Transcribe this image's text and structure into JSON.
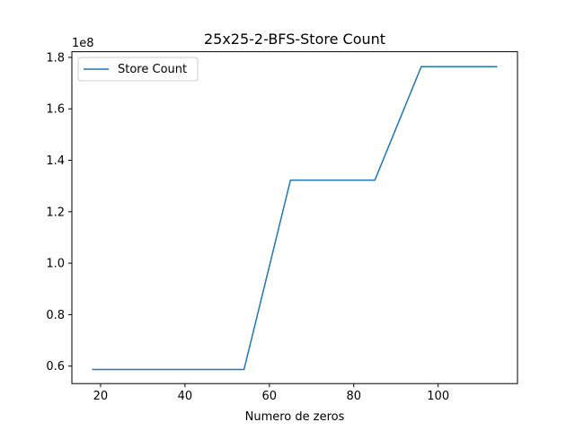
{
  "chart_data": {
    "type": "line",
    "title": "25x25-2-BFS-Store Count",
    "xlabel": "Numero de zeros",
    "ylabel": "",
    "y_multiplier_label": "1e8",
    "xlim": [
      13.2,
      118.8
    ],
    "ylim": [
      0.532,
      1.822
    ],
    "x_ticks": [
      20,
      40,
      60,
      80,
      100
    ],
    "x_tick_labels": [
      "20",
      "40",
      "60",
      "80",
      "100"
    ],
    "y_ticks": [
      0.6,
      0.8,
      1.0,
      1.2,
      1.4,
      1.6,
      1.8
    ],
    "y_tick_labels": [
      "0.6",
      "0.8",
      "1.0",
      "1.2",
      "1.4",
      "1.6",
      "1.8"
    ],
    "grid": false,
    "legend_position": "top-left",
    "series": [
      {
        "name": "Store Count",
        "color": "#1f77b4",
        "x": [
          18,
          54,
          65,
          85,
          96,
          114
        ],
        "y": [
          0.587,
          0.587,
          1.323,
          1.323,
          1.764,
          1.764
        ]
      }
    ]
  }
}
